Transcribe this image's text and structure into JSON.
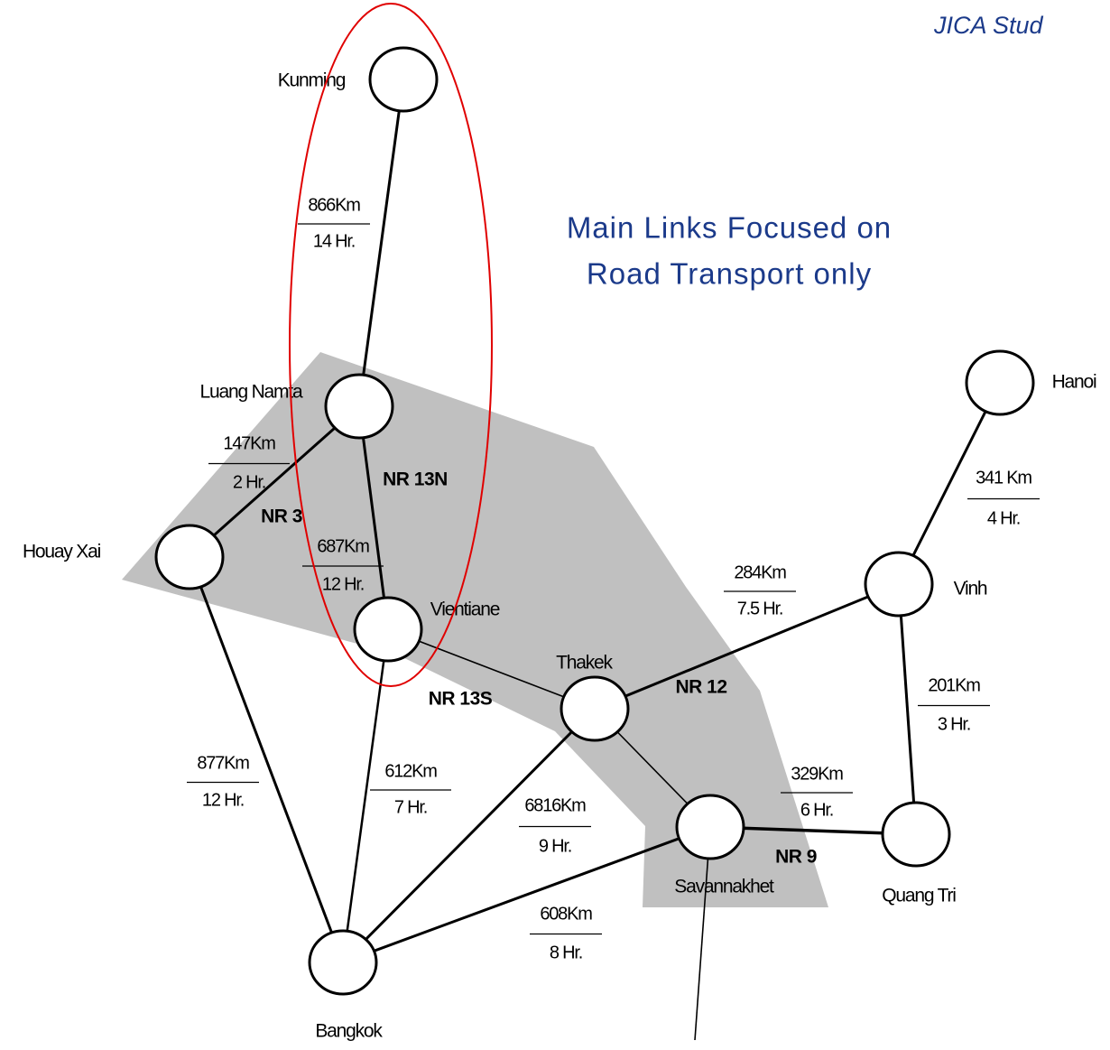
{
  "source": "JICA Stud",
  "annotation": [
    "Main Links Focused on",
    "Road Transport only"
  ],
  "nodes": [
    {
      "label": "Kunming"
    },
    {
      "label": "Luang Namta"
    },
    {
      "label": "Houay Xai"
    },
    {
      "label": "Vientiane"
    },
    {
      "label": "Thakek"
    },
    {
      "label": "Savannakhet"
    },
    {
      "label": "Bangkok"
    },
    {
      "label": "Vinh"
    },
    {
      "label": "Hanoi"
    },
    {
      "label": "Quang Tri"
    }
  ],
  "links": [
    {
      "distance": "866Km",
      "time": "14 Hr."
    },
    {
      "distance": "147Km",
      "time": "2 Hr."
    },
    {
      "distance": "687Km",
      "time": "12 Hr."
    },
    {
      "distance": "877Km",
      "time": "12 Hr."
    },
    {
      "distance": "612Km",
      "time": "7 Hr."
    },
    {
      "distance": "6816Km",
      "time": "9 Hr."
    },
    {
      "distance": "608Km",
      "time": "8 Hr."
    },
    {
      "distance": "284Km",
      "time": "7.5 Hr."
    },
    {
      "distance": "341 Km",
      "time": "4 Hr."
    },
    {
      "distance": "201Km",
      "time": "3 Hr."
    },
    {
      "distance": "329Km",
      "time": "6 Hr."
    }
  ],
  "routes": [
    "NR 13N",
    "NR 3",
    "NR 13S",
    "NR 12",
    "NR 9"
  ]
}
